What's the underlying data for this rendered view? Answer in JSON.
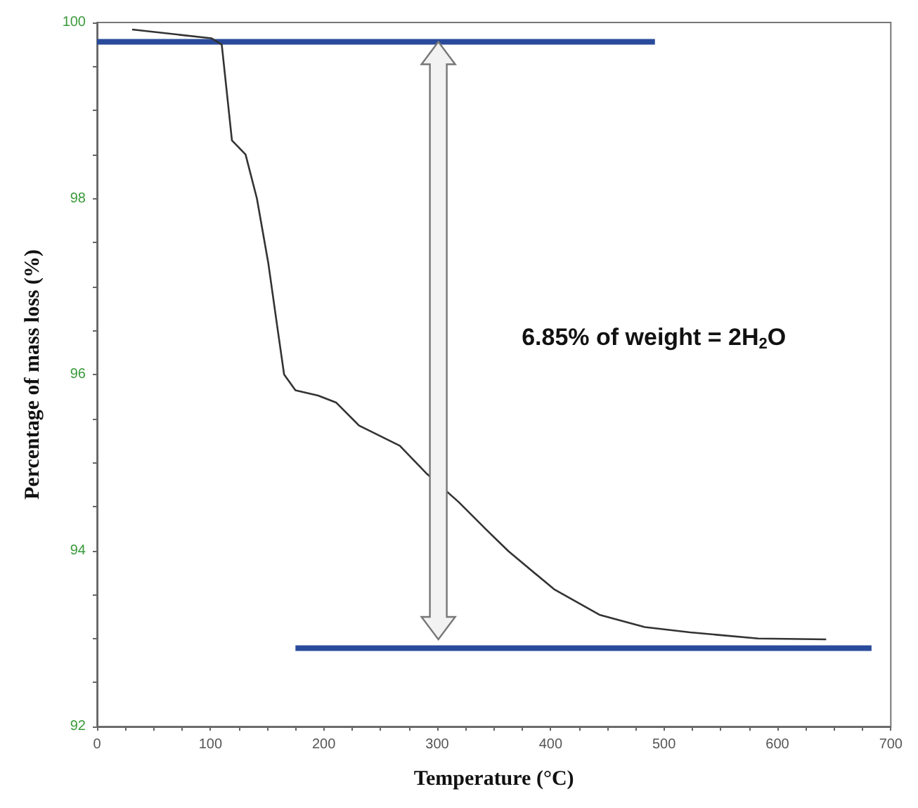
{
  "chart_data": {
    "type": "line",
    "xlabel": "Temperature (°C)",
    "ylabel": "Percentage of mass loss (%)",
    "annotations": [
      "6.85% of weight = 2H$_{2}$O"
    ],
    "xlim": [
      0,
      700
    ],
    "xticks": [
      0,
      100,
      200,
      300,
      400,
      500,
      600,
      700
    ],
    "ylim": [
      92,
      100
    ],
    "yticks": [
      92,
      94,
      96,
      98,
      100
    ],
    "marker": "none",
    "series": [
      {
        "color": "#333333",
        "x": [
          31,
          101,
          110,
          119,
          131,
          141,
          151,
          159,
          165,
          175,
          195,
          211,
          231,
          267,
          291,
          319,
          343,
          363,
          403,
          443,
          483,
          523,
          583,
          643
        ],
        "values": [
          99.92,
          99.82,
          99.75,
          98.66,
          98.5,
          98.0,
          97.27,
          96.54,
          96.0,
          95.82,
          95.76,
          95.68,
          95.42,
          95.19,
          94.87,
          94.55,
          94.24,
          93.99,
          93.56,
          93.27,
          93.13,
          93.07,
          93.0,
          92.99
        ]
      },
      {
        "color": "#2a4b9b",
        "x": [
          0,
          492
        ],
        "values": [
          99.78,
          99.78
        ]
      },
      {
        "color": "#2a4b9b",
        "x": [
          175,
          683
        ],
        "values": [
          92.89,
          92.89
        ]
      }
    ]
  }
}
